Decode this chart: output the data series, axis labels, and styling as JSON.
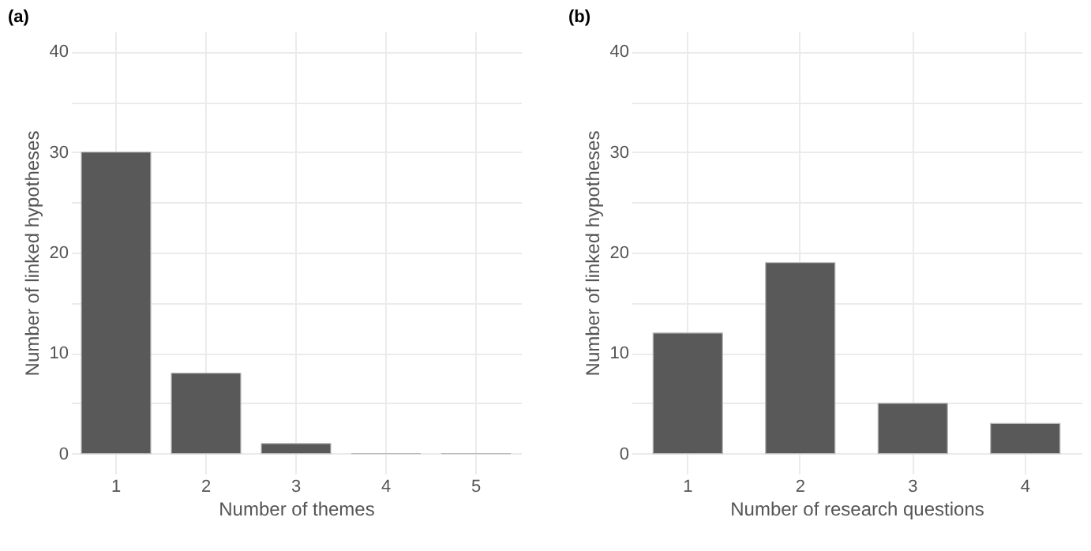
{
  "chart_data": [
    {
      "type": "bar",
      "title": "(a)",
      "xlabel": "Number of themes",
      "ylabel": "Number of linked hypotheses",
      "categories": [
        "1",
        "2",
        "3",
        "4",
        "5"
      ],
      "values": [
        30,
        8,
        1,
        0,
        0
      ],
      "color": "#595959",
      "ylim": [
        -2,
        42
      ],
      "yticks": [
        0,
        {
          "value": 5,
          "label": null
        },
        10,
        {
          "value": 15,
          "label": null
        },
        20,
        {
          "value": 25,
          "label": null
        },
        30,
        {
          "value": 35,
          "label": null
        },
        40
      ],
      "grid": true
    },
    {
      "type": "bar",
      "title": "(b)",
      "xlabel": "Number of research questions",
      "ylabel": "Number of linked hypotheses",
      "categories": [
        "1",
        "2",
        "3",
        "4"
      ],
      "values": [
        12,
        19,
        5,
        3
      ],
      "color": "#595959",
      "ylim": [
        -2,
        42
      ],
      "yticks": [
        0,
        {
          "value": 5,
          "label": null
        },
        10,
        {
          "value": 15,
          "label": null
        },
        20,
        {
          "value": 25,
          "label": null
        },
        30,
        {
          "value": 35,
          "label": null
        },
        40
      ],
      "grid": true
    }
  ]
}
